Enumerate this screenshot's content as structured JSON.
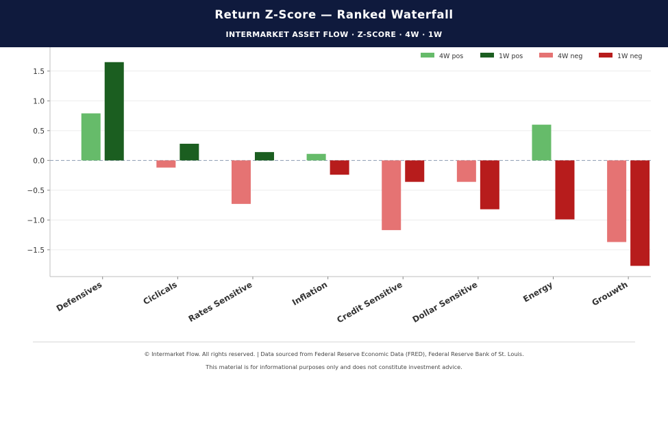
{
  "header": {
    "title": "Return Z-Score — Ranked Waterfall",
    "subtitle": "INTERMARKET ASSET FLOW  ·  Z-SCORE  ·  4W · 1W"
  },
  "legend": {
    "items": [
      {
        "label": "4W pos",
        "color": "#66bb6a"
      },
      {
        "label": "1W pos",
        "color": "#1b5e20"
      },
      {
        "label": "4W neg",
        "color": "#e57373"
      },
      {
        "label": "1W neg",
        "color": "#b71c1c"
      }
    ]
  },
  "chart_data": {
    "type": "bar",
    "categories": [
      "Defensives",
      "Ciclicals",
      "Rates Sensitive",
      "Inflation",
      "Credit Sensitive",
      "Dollar Sensitive",
      "Energy",
      "Grouwth"
    ],
    "series": [
      {
        "name": "4W",
        "values": [
          0.79,
          -0.12,
          -0.73,
          0.11,
          -1.17,
          -0.36,
          0.6,
          -1.37
        ]
      },
      {
        "name": "1W",
        "values": [
          1.65,
          0.28,
          0.14,
          -0.24,
          -0.36,
          -0.82,
          -0.99,
          -1.77
        ]
      }
    ],
    "colors": {
      "pos_4w": "#66bb6a",
      "pos_1w": "#1b5e20",
      "neg_4w": "#e57373",
      "neg_1w": "#b71c1c"
    },
    "yticks": [
      1.5,
      1.0,
      0.5,
      0.0,
      -0.5,
      -1.0,
      -1.5
    ],
    "ytick_labels": [
      "1.5",
      "1.0",
      "0.5",
      "0.0",
      "−0.5",
      "−1.0",
      "−1.5"
    ],
    "ylim": [
      -1.95,
      1.9
    ],
    "grid": true,
    "zero_line": "dashed",
    "legend_position": "top-right"
  },
  "footer": {
    "line1": "© Intermarket Flow. All rights reserved.  |  Data sourced from Federal Reserve Economic Data (FRED), Federal Reserve Bank of St. Louis.",
    "line2": "This material is for informational purposes only and does not constitute investment advice."
  }
}
